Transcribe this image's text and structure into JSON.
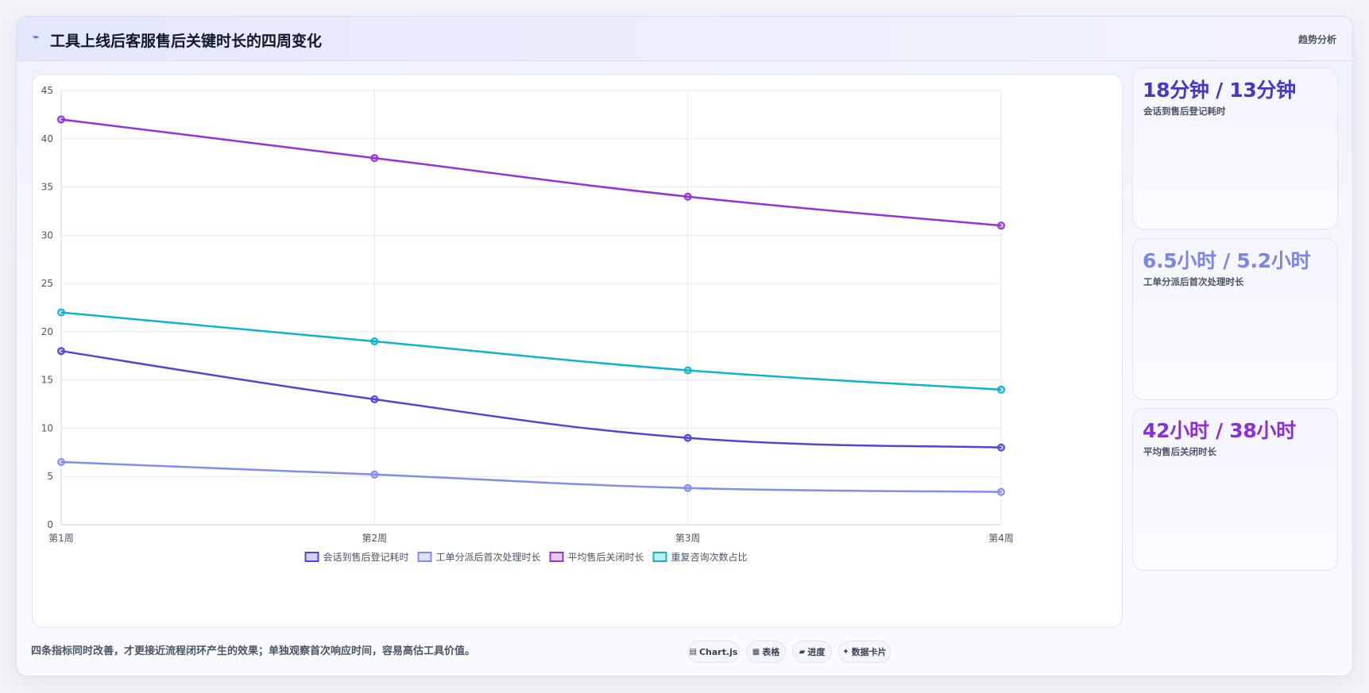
{
  "header": {
    "icon": "trend-icon",
    "title": "工具上线后客服售后关键时长的四周变化",
    "tag": "趋势分析"
  },
  "chart_data": {
    "type": "line",
    "title": "",
    "xlabel": "",
    "ylabel": "",
    "categories": [
      "第1周",
      "第2周",
      "第3周",
      "第4周"
    ],
    "ylim": [
      0,
      45
    ],
    "yticks": [
      0,
      5,
      10,
      15,
      20,
      25,
      30,
      35,
      40,
      45
    ],
    "grid": true,
    "legend_position": "bottom",
    "series": [
      {
        "name": "会话到售后登记耗时",
        "values": [
          18,
          13,
          9,
          8
        ],
        "color": "#4f46d9"
      },
      {
        "name": "工单分派后首次处理时长",
        "values": [
          6.5,
          5.2,
          3.8,
          3.4
        ],
        "color": "#818cf0"
      },
      {
        "name": "平均售后关闭时长",
        "values": [
          42,
          38,
          34,
          31
        ],
        "color": "#9333d9"
      },
      {
        "name": "重复咨询次数占比",
        "values": [
          22,
          19,
          16,
          14
        ],
        "color": "#0fb3cb"
      }
    ]
  },
  "side_cards": [
    {
      "value": "18分钟 / 13分钟",
      "label": "会话到售后登记耗时",
      "color": "#4338ca"
    },
    {
      "value": "6.5小时 / 5.2小时",
      "label": "工单分派后首次处理时长",
      "color": "#7c86e8"
    },
    {
      "value": "42小时 / 38小时",
      "label": "平均售后关闭时长",
      "color": "#8b2fd6"
    }
  ],
  "footer": {
    "note": "四条指标同时改善，才更接近流程闭环产生的效果；单独观察首次响应时间，容易高估工具价值。",
    "pills": [
      {
        "icon": "chart-icon",
        "label": "Chart.js"
      },
      {
        "icon": "table-icon",
        "label": "表格"
      },
      {
        "icon": "progress-icon",
        "label": "进度"
      },
      {
        "icon": "card-icon",
        "label": "数据卡片"
      }
    ]
  }
}
